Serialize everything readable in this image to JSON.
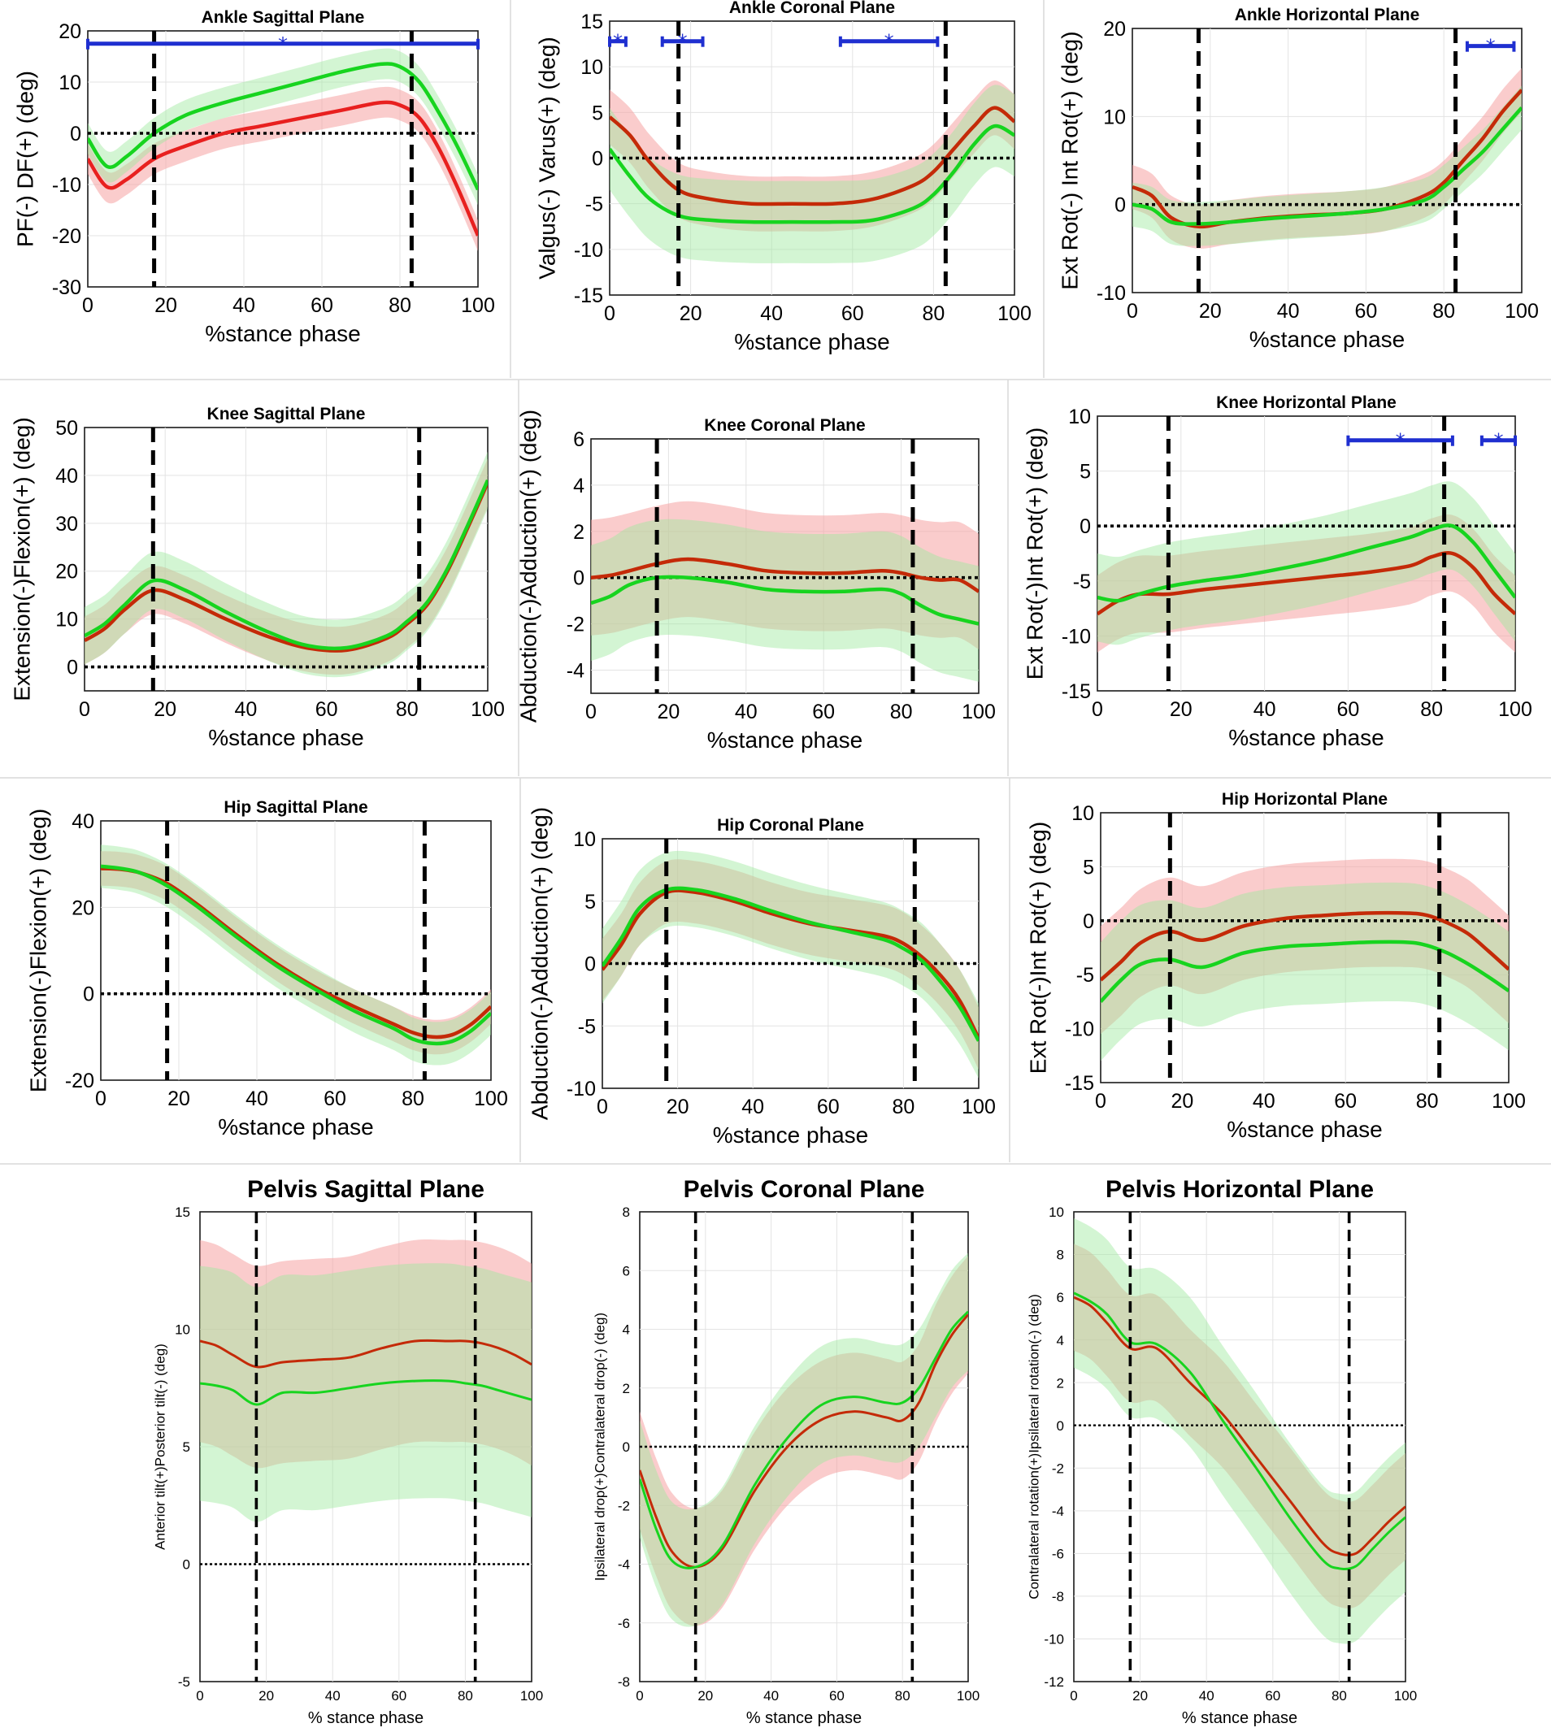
{
  "colors": {
    "groupA_line": "#e8201f",
    "groupA_line_dark": "#c42a08",
    "groupA_band": "#f6a3a3",
    "groupB_line": "#17d41f",
    "groupB_band": "#9ee89e",
    "significance": "#1f2fd0",
    "zero_line": "#000000"
  },
  "chart_data": [
    {
      "type": "line",
      "title": "Ankle Sagittal Plane",
      "xlabel": "%stance phase",
      "ylabel": "PF(-) DF(+) (deg)",
      "xlim": [
        0,
        100
      ],
      "ylim": [
        -30,
        20
      ],
      "xticks": [
        0,
        20,
        40,
        60,
        80,
        100
      ],
      "yticks": [
        -30,
        -20,
        -10,
        0,
        10,
        20
      ],
      "phase_lines": [
        17,
        83
      ],
      "x": [
        0,
        5,
        10,
        17,
        25,
        35,
        45,
        55,
        65,
        75,
        80,
        85,
        90,
        95,
        100
      ],
      "series": [
        {
          "name": "red",
          "values": [
            -5,
            -10.5,
            -9,
            -5,
            -2.5,
            0,
            1.5,
            3,
            4.5,
            6,
            5.5,
            3,
            -3,
            -11,
            -20
          ],
          "band": 3
        },
        {
          "name": "green",
          "values": [
            -1,
            -6.5,
            -4.5,
            0,
            3.5,
            6,
            8,
            10,
            12,
            13.5,
            13,
            10,
            4,
            -3,
            -11
          ],
          "band": 3
        }
      ],
      "significance": [
        {
          "from": 0,
          "to": 100,
          "y": 17.5
        }
      ]
    },
    {
      "type": "line",
      "title": "Ankle Coronal Plane",
      "xlabel": "%stance phase",
      "ylabel": "Valgus(-) Varus(+) (deg)",
      "xlim": [
        0,
        100
      ],
      "ylim": [
        -15,
        15
      ],
      "xticks": [
        0,
        20,
        40,
        60,
        80,
        100
      ],
      "yticks": [
        -15,
        -10,
        -5,
        0,
        5,
        10,
        15
      ],
      "phase_lines": [
        17,
        83
      ],
      "x": [
        0,
        5,
        10,
        17,
        25,
        35,
        45,
        55,
        65,
        75,
        80,
        85,
        90,
        95,
        100
      ],
      "series": [
        {
          "name": "red",
          "values": [
            4.5,
            2.5,
            -0.5,
            -3.5,
            -4.5,
            -5,
            -5,
            -5,
            -4.5,
            -3,
            -1.5,
            1,
            3.5,
            5.5,
            4
          ],
          "band": 3
        },
        {
          "name": "green",
          "values": [
            1,
            -2,
            -4.5,
            -6.3,
            -6.8,
            -7,
            -7,
            -7,
            -6.8,
            -5.5,
            -4,
            -1.5,
            1.5,
            3.5,
            2.5
          ],
          "band": 4.5
        }
      ],
      "significance": [
        {
          "from": 0,
          "to": 4,
          "y": 12.8
        },
        {
          "from": 13,
          "to": 23,
          "y": 12.8
        },
        {
          "from": 57,
          "to": 81,
          "y": 12.8
        }
      ]
    },
    {
      "type": "line",
      "title": "Ankle Horizontal Plane",
      "xlabel": "%stance phase",
      "ylabel": "Ext Rot(-) Int Rot(+) (deg)",
      "xlim": [
        0,
        100
      ],
      "ylim": [
        -10,
        20
      ],
      "xticks": [
        0,
        20,
        40,
        60,
        80,
        100
      ],
      "yticks": [
        -10,
        0,
        10,
        20
      ],
      "phase_lines": [
        17,
        83
      ],
      "x": [
        0,
        5,
        10,
        17,
        25,
        35,
        45,
        55,
        65,
        75,
        80,
        85,
        90,
        95,
        100
      ],
      "series": [
        {
          "name": "red",
          "values": [
            2,
            1,
            -1.5,
            -2.5,
            -2,
            -1.5,
            -1.2,
            -1,
            -0.5,
            1,
            2.5,
            5,
            7.5,
            10.5,
            13
          ],
          "band": 2.5
        },
        {
          "name": "green",
          "values": [
            0,
            -0.5,
            -2,
            -2.2,
            -2,
            -1.6,
            -1.3,
            -1,
            -0.5,
            0.5,
            2,
            4,
            6,
            8.5,
            11
          ],
          "band": 2.5
        }
      ],
      "significance": [
        {
          "from": 86,
          "to": 98,
          "y": 18
        }
      ]
    },
    {
      "type": "line",
      "title": "Knee Sagittal Plane",
      "xlabel": "%stance phase",
      "ylabel": "Extension(-)Flexion(+) (deg)",
      "xlim": [
        0,
        100
      ],
      "ylim": [
        -5,
        50
      ],
      "xticks": [
        0,
        20,
        40,
        60,
        80,
        100
      ],
      "yticks": [
        0,
        10,
        20,
        30,
        40,
        50
      ],
      "phase_lines": [
        17,
        83
      ],
      "x": [
        0,
        5,
        10,
        17,
        25,
        35,
        45,
        55,
        65,
        75,
        80,
        85,
        90,
        95,
        100
      ],
      "series": [
        {
          "name": "red",
          "values": [
            5.5,
            8,
            12,
            16,
            14,
            10,
            6.5,
            4,
            3.5,
            6,
            9,
            13,
            20,
            29,
            38.5
          ],
          "band": 5
        },
        {
          "name": "green",
          "values": [
            6.5,
            9,
            13,
            18,
            16,
            11.5,
            7.5,
            4.5,
            4,
            6.5,
            9.5,
            13.5,
            20.5,
            29.5,
            39
          ],
          "band": 6
        }
      ],
      "significance": []
    },
    {
      "type": "line",
      "title": "Knee Coronal Plane",
      "xlabel": "%stance phase",
      "ylabel": "Abduction(-)Adduction(+) (deg)",
      "xlim": [
        0,
        100
      ],
      "ylim": [
        -5,
        6
      ],
      "xticks": [
        0,
        20,
        40,
        60,
        80,
        100
      ],
      "yticks": [
        -4,
        -2,
        0,
        2,
        4,
        6
      ],
      "phase_lines": [
        17,
        83
      ],
      "x": [
        0,
        5,
        10,
        17,
        25,
        35,
        45,
        55,
        65,
        75,
        80,
        85,
        90,
        95,
        100
      ],
      "series": [
        {
          "name": "red",
          "values": [
            0,
            0.1,
            0.3,
            0.6,
            0.8,
            0.6,
            0.3,
            0.2,
            0.2,
            0.3,
            0.2,
            0,
            -0.1,
            -0.1,
            -0.6
          ],
          "band": 2.5
        },
        {
          "name": "green",
          "values": [
            -1.1,
            -0.8,
            -0.3,
            0,
            0,
            -0.2,
            -0.5,
            -0.6,
            -0.6,
            -0.5,
            -0.7,
            -1.2,
            -1.6,
            -1.8,
            -2
          ],
          "band": 2.5
        }
      ],
      "significance": []
    },
    {
      "type": "line",
      "title": "Knee Horizontal Plane",
      "xlabel": "%stance phase",
      "ylabel": "Ext Rot(-)Int Rot(+) (deg)",
      "xlim": [
        0,
        100
      ],
      "ylim": [
        -15,
        10
      ],
      "xticks": [
        0,
        20,
        40,
        60,
        80,
        100
      ],
      "yticks": [
        -15,
        -10,
        -5,
        0,
        5,
        10
      ],
      "phase_lines": [
        17,
        83
      ],
      "x": [
        0,
        5,
        10,
        17,
        25,
        35,
        45,
        55,
        65,
        75,
        80,
        85,
        90,
        95,
        100
      ],
      "series": [
        {
          "name": "red",
          "values": [
            -8,
            -6.8,
            -6.2,
            -6.2,
            -5.8,
            -5.4,
            -5,
            -4.6,
            -4.2,
            -3.6,
            -2.8,
            -2.5,
            -3.8,
            -6.2,
            -8
          ],
          "band": 3.5
        },
        {
          "name": "green",
          "values": [
            -6.5,
            -6.8,
            -6.2,
            -5.5,
            -5,
            -4.5,
            -3.8,
            -3,
            -2,
            -1,
            -0.3,
            0,
            -1.5,
            -4,
            -6.5
          ],
          "band": 4
        }
      ],
      "significance": [
        {
          "from": 60,
          "to": 85,
          "y": 7.8
        },
        {
          "from": 92,
          "to": 100,
          "y": 7.8
        }
      ]
    },
    {
      "type": "line",
      "title": "Hip Sagittal Plane",
      "xlabel": "%stance phase",
      "ylabel": "Extension(-)Flexion(+) (deg)",
      "xlim": [
        0,
        100
      ],
      "ylim": [
        -20,
        40
      ],
      "xticks": [
        0,
        20,
        40,
        60,
        80,
        100
      ],
      "yticks": [
        -20,
        0,
        20,
        40
      ],
      "phase_lines": [
        17,
        83
      ],
      "x": [
        0,
        5,
        10,
        17,
        25,
        35,
        45,
        55,
        65,
        75,
        80,
        85,
        90,
        95,
        100
      ],
      "series": [
        {
          "name": "red",
          "values": [
            29,
            28.8,
            28,
            25.5,
            20.5,
            13.5,
            7,
            1.5,
            -3,
            -7,
            -9,
            -10,
            -9.5,
            -7,
            -3
          ],
          "band": 4
        },
        {
          "name": "green",
          "values": [
            29.5,
            29,
            28,
            25,
            20,
            13,
            6.5,
            1,
            -4,
            -8,
            -10.5,
            -11.5,
            -11,
            -8.5,
            -4.5
          ],
          "band": 5
        }
      ],
      "significance": []
    },
    {
      "type": "line",
      "title": "Hip Coronal Plane",
      "xlabel": "%stance phase",
      "ylabel": "Abduction(-)Adduction(+) (deg)",
      "xlim": [
        0,
        100
      ],
      "ylim": [
        -10,
        10
      ],
      "xticks": [
        0,
        20,
        40,
        60,
        80,
        100
      ],
      "yticks": [
        -10,
        -5,
        0,
        5,
        10
      ],
      "phase_lines": [
        17,
        83
      ],
      "x": [
        0,
        5,
        10,
        17,
        25,
        35,
        45,
        55,
        65,
        75,
        80,
        85,
        90,
        95,
        100
      ],
      "series": [
        {
          "name": "red",
          "values": [
            -0.5,
            1.5,
            4,
            5.7,
            5.7,
            5,
            4,
            3.2,
            2.7,
            2.2,
            1.6,
            0.5,
            -1,
            -3,
            -6
          ],
          "band": 2.5
        },
        {
          "name": "green",
          "values": [
            -0.2,
            2,
            4.5,
            5.9,
            5.9,
            5.2,
            4.2,
            3.3,
            2.6,
            1.9,
            1.2,
            0.2,
            -1.5,
            -3.5,
            -6.2
          ],
          "band": 3
        }
      ],
      "significance": []
    },
    {
      "type": "line",
      "title": "Hip Horizontal Plane",
      "xlabel": "%stance phase",
      "ylabel": "Ext Rot(-)Int Rot(+) (deg)",
      "xlim": [
        0,
        100
      ],
      "ylim": [
        -15,
        10
      ],
      "xticks": [
        0,
        20,
        40,
        60,
        80,
        100
      ],
      "yticks": [
        -15,
        -10,
        -5,
        0,
        5,
        10
      ],
      "phase_lines": [
        17,
        83
      ],
      "x": [
        0,
        5,
        10,
        17,
        25,
        35,
        45,
        55,
        65,
        75,
        80,
        85,
        90,
        95,
        100
      ],
      "series": [
        {
          "name": "red",
          "values": [
            -5.5,
            -3.8,
            -2,
            -1,
            -1.8,
            -0.5,
            0.2,
            0.5,
            0.7,
            0.7,
            0.5,
            -0.2,
            -1.2,
            -2.8,
            -4.5
          ],
          "band": 5
        },
        {
          "name": "green",
          "values": [
            -7.5,
            -5.5,
            -4,
            -3.6,
            -4.3,
            -3,
            -2.4,
            -2.2,
            -2,
            -2,
            -2.3,
            -3,
            -4,
            -5.2,
            -6.5
          ],
          "band": 5.5
        }
      ],
      "significance": []
    },
    {
      "type": "line",
      "title": "Pelvis Sagittal Plane",
      "xlabel": "% stance phase",
      "ylabel": "Anterior tilt(+)Posterior tilt(-) (deg)",
      "xlim": [
        0,
        100
      ],
      "ylim": [
        -5,
        15
      ],
      "xticks": [
        0,
        20,
        40,
        60,
        80,
        100
      ],
      "yticks": [
        -5,
        0,
        5,
        10,
        15
      ],
      "phase_lines": [
        17,
        83
      ],
      "x": [
        0,
        5,
        10,
        17,
        25,
        35,
        45,
        55,
        65,
        75,
        80,
        85,
        90,
        95,
        100
      ],
      "series": [
        {
          "name": "red",
          "values": [
            9.5,
            9.3,
            8.9,
            8.4,
            8.6,
            8.7,
            8.8,
            9.2,
            9.5,
            9.5,
            9.5,
            9.4,
            9.2,
            8.9,
            8.5
          ],
          "band": 4.3
        },
        {
          "name": "green",
          "values": [
            7.7,
            7.6,
            7.4,
            6.8,
            7.3,
            7.3,
            7.5,
            7.7,
            7.8,
            7.8,
            7.7,
            7.6,
            7.4,
            7.2,
            7
          ],
          "band": 5
        }
      ],
      "significance": []
    },
    {
      "type": "line",
      "title": "Pelvis Coronal Plane",
      "xlabel": "% stance phase",
      "ylabel": "Ipsilateral drop(+)Contralateral drop(-) (deg)",
      "xlim": [
        0,
        100
      ],
      "ylim": [
        -8,
        8
      ],
      "xticks": [
        0,
        20,
        40,
        60,
        80,
        100
      ],
      "yticks": [
        -8,
        -6,
        -4,
        -2,
        0,
        2,
        4,
        6,
        8
      ],
      "phase_lines": [
        17,
        83
      ],
      "x": [
        0,
        5,
        10,
        17,
        25,
        35,
        45,
        55,
        65,
        75,
        80,
        85,
        90,
        95,
        100
      ],
      "series": [
        {
          "name": "red",
          "values": [
            -0.8,
            -2.4,
            -3.6,
            -4.1,
            -3.5,
            -1.5,
            0,
            0.9,
            1.2,
            1,
            0.9,
            1.5,
            2.8,
            3.8,
            4.5
          ],
          "band": 2
        },
        {
          "name": "green",
          "values": [
            -1.1,
            -2.8,
            -3.9,
            -4.1,
            -3.4,
            -1.3,
            0.3,
            1.4,
            1.7,
            1.5,
            1.5,
            2,
            3,
            4,
            4.6
          ],
          "band": 2
        }
      ],
      "significance": []
    },
    {
      "type": "line",
      "title": "Pelvis Horizontal Plane",
      "xlabel": "% stance phase",
      "ylabel": "Contralateral rotation(+)Ipsilateral rotation(-) (deg)",
      "xlim": [
        0,
        100
      ],
      "ylim": [
        -12,
        10
      ],
      "xticks": [
        0,
        20,
        40,
        60,
        80,
        100
      ],
      "yticks": [
        -12,
        -10,
        -8,
        -6,
        -4,
        -2,
        0,
        2,
        4,
        6,
        8,
        10
      ],
      "phase_lines": [
        17,
        83
      ],
      "x": [
        0,
        5,
        10,
        17,
        25,
        35,
        45,
        55,
        65,
        75,
        80,
        85,
        90,
        95,
        100
      ],
      "series": [
        {
          "name": "red",
          "values": [
            6,
            5.6,
            4.8,
            3.6,
            3.6,
            2,
            0.5,
            -1.5,
            -3.5,
            -5.5,
            -6,
            -6,
            -5.3,
            -4.5,
            -3.8
          ],
          "band": 2.5
        },
        {
          "name": "green",
          "values": [
            6.2,
            5.8,
            5.2,
            3.9,
            3.8,
            2.5,
            0.2,
            -2,
            -4.3,
            -6.3,
            -6.7,
            -6.6,
            -5.8,
            -5,
            -4.3
          ],
          "band": 3.5
        }
      ],
      "significance": []
    }
  ]
}
